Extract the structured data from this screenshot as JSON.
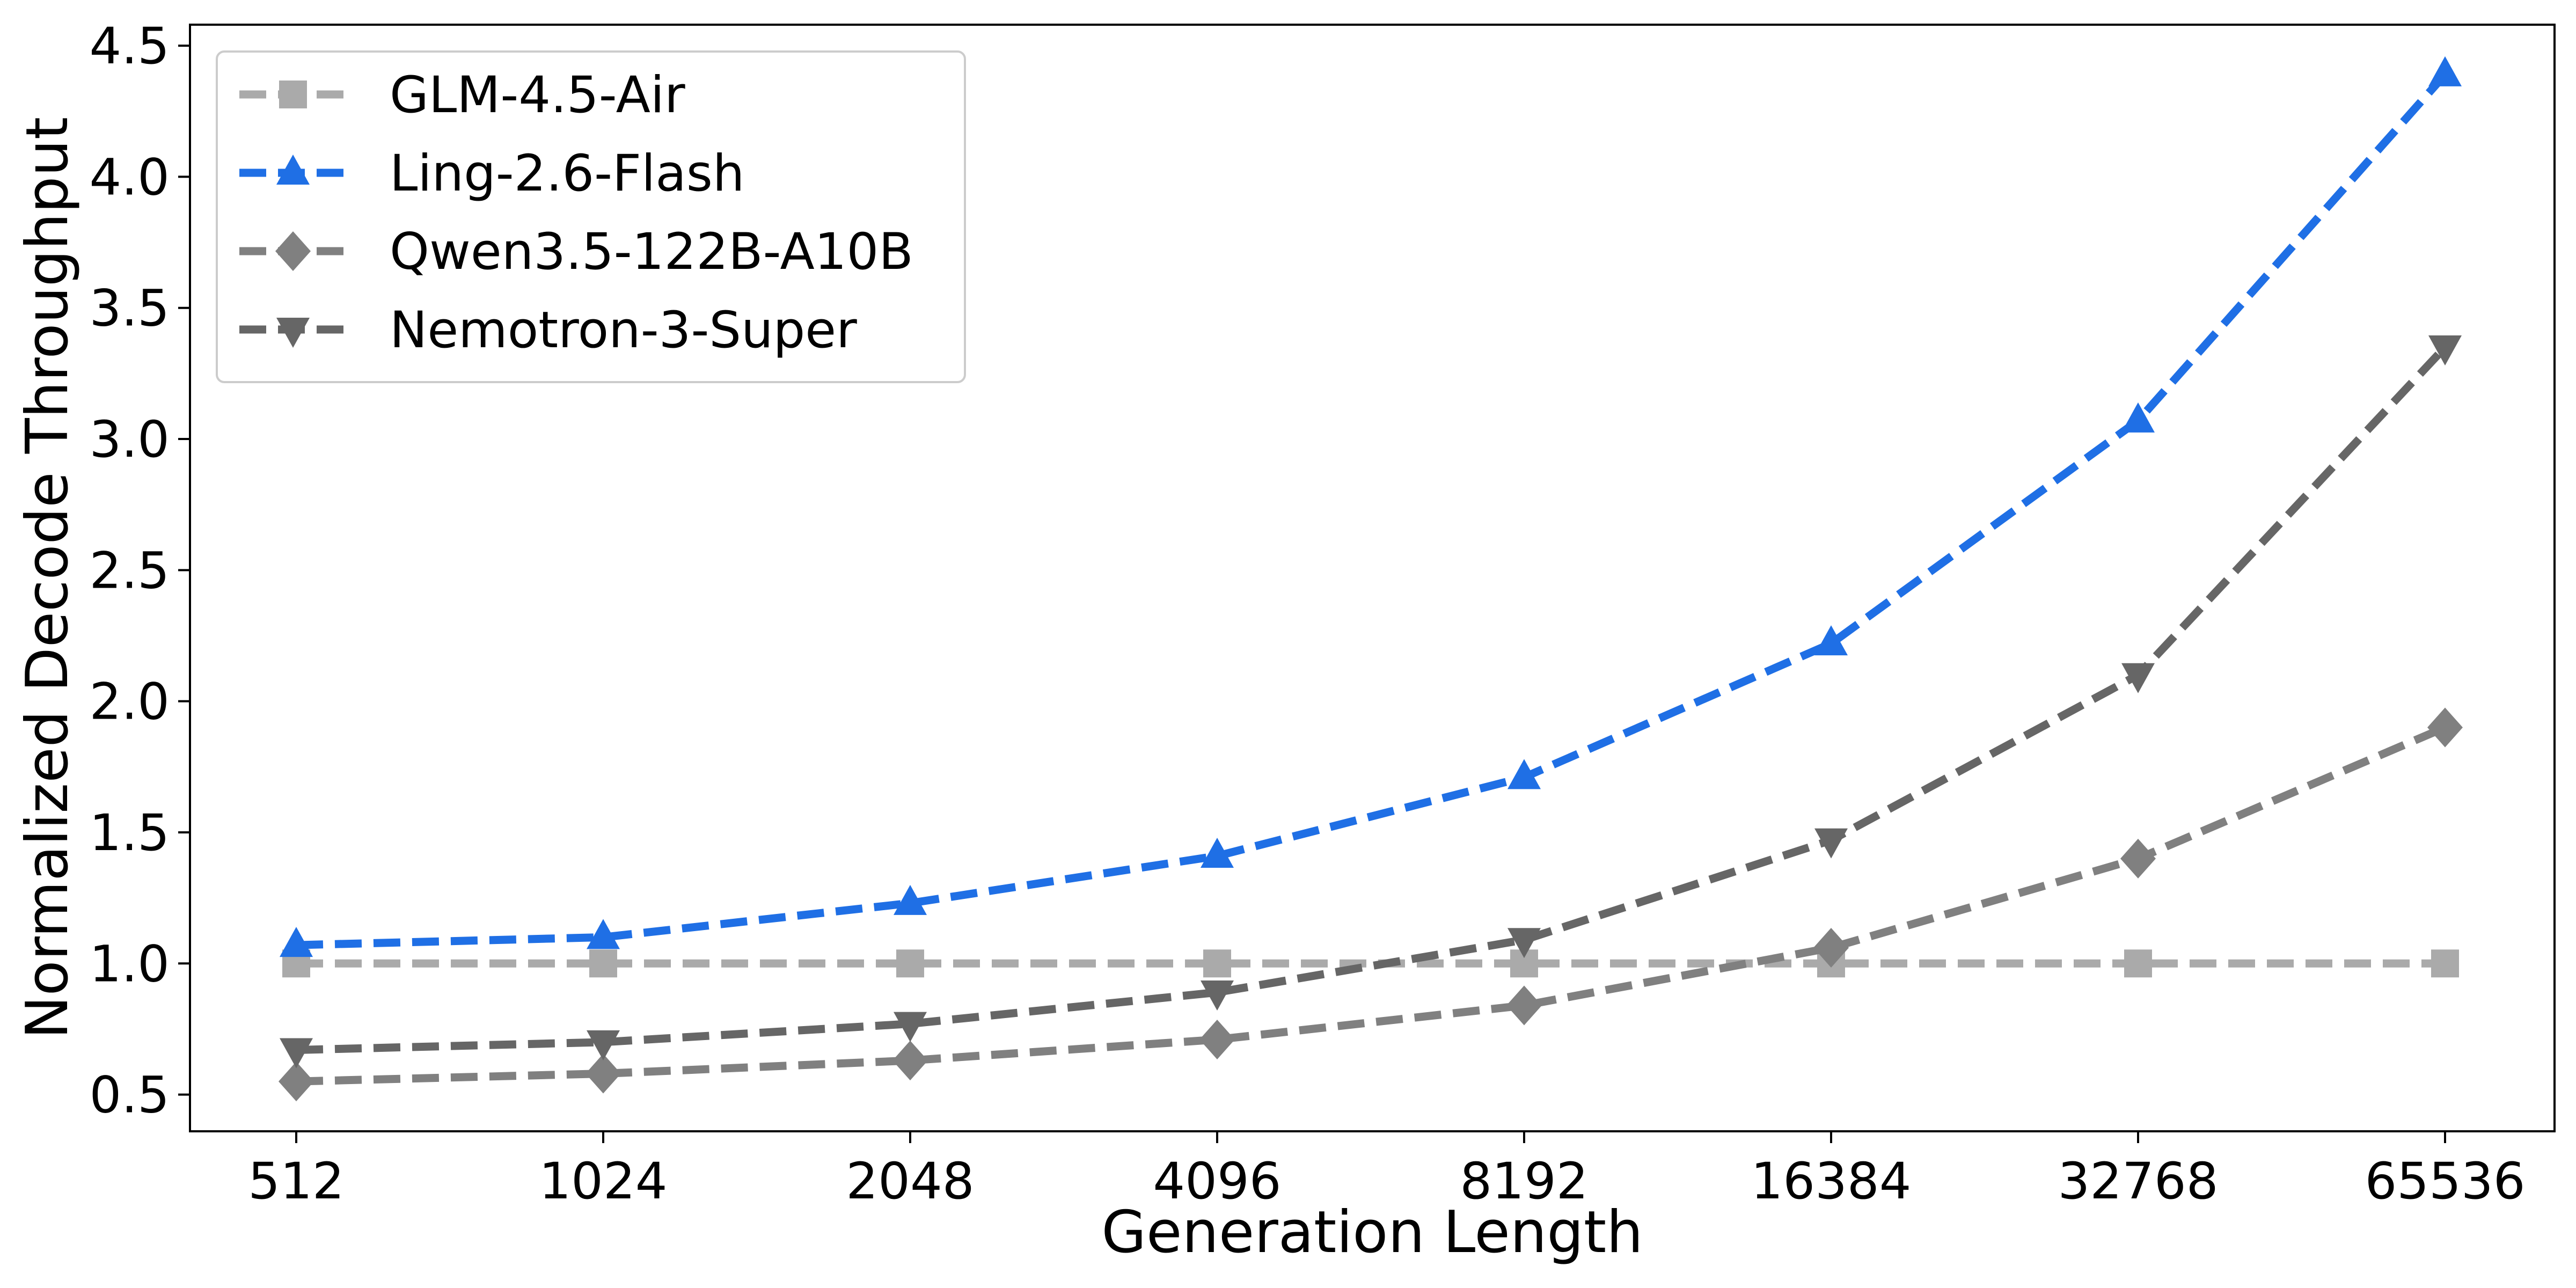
{
  "chart_data": {
    "type": "line",
    "title": "",
    "xlabel": "Generation Length",
    "ylabel": "Normalized Decode Throughput",
    "categories": [
      "512",
      "1024",
      "2048",
      "4096",
      "8192",
      "16384",
      "32768",
      "65536"
    ],
    "ylim": [
      0.36,
      4.58
    ],
    "yticks": [
      "0.5",
      "1.0",
      "1.5",
      "2.0",
      "2.5",
      "3.0",
      "3.5",
      "4.0",
      "4.5"
    ],
    "grid": false,
    "legend_position": "top-left",
    "series": [
      {
        "name": "GLM-4.5-Air",
        "color": "#aaaaaa",
        "marker": "square",
        "values": [
          1.0,
          1.0,
          1.0,
          1.0,
          1.0,
          1.0,
          1.0,
          1.0
        ]
      },
      {
        "name": "Ling-2.6-Flash",
        "color": "#1f6fe5",
        "marker": "triangle-up",
        "values": [
          1.07,
          1.1,
          1.23,
          1.41,
          1.71,
          2.22,
          3.07,
          4.39
        ]
      },
      {
        "name": "Qwen3.5-122B-A10B",
        "color": "#808080",
        "marker": "diamond",
        "values": [
          0.55,
          0.58,
          0.63,
          0.71,
          0.84,
          1.06,
          1.4,
          1.9
        ]
      },
      {
        "name": "Nemotron-3-Super",
        "color": "#666666",
        "marker": "triangle-down",
        "values": [
          0.67,
          0.7,
          0.77,
          0.89,
          1.09,
          1.47,
          2.1,
          3.35
        ]
      }
    ]
  }
}
